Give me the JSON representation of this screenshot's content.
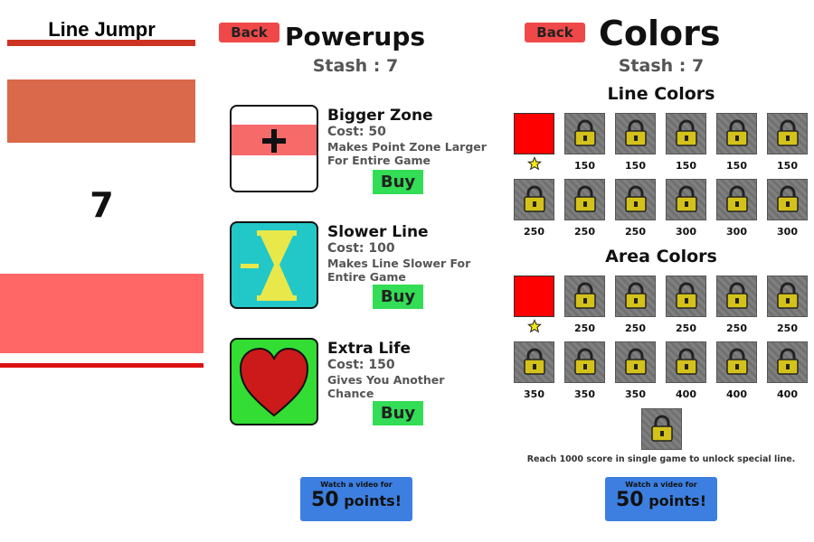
{
  "game": {
    "title": "Line Jumpr",
    "score": "7"
  },
  "powerups": {
    "back_label": "Back",
    "title": "Powerups",
    "stash": "Stash : 7",
    "items": [
      {
        "name": "Bigger Zone",
        "cost": "Cost: 50",
        "desc": "Makes Point Zone Larger For Entire Game",
        "buy": "Buy",
        "icon": "plus-icon"
      },
      {
        "name": "Slower Line",
        "cost": "Cost: 100",
        "desc": "Makes Line Slower For Entire Game",
        "buy": "Buy",
        "icon": "hourglass-icon"
      },
      {
        "name": "Extra Life",
        "cost": "Cost: 150",
        "desc": "Gives You Another Chance",
        "buy": "Buy",
        "icon": "heart-icon"
      }
    ],
    "video": {
      "small": "Watch a video for",
      "number": "50",
      "unit": " points!"
    }
  },
  "colors": {
    "back_label": "Back",
    "title": "Colors",
    "stash": "Stash : 7",
    "line_title": "Line Colors",
    "line_prices": [
      "",
      "150",
      "150",
      "150",
      "150",
      "150",
      "250",
      "250",
      "250",
      "300",
      "300",
      "300"
    ],
    "area_title": "Area Colors",
    "area_prices": [
      "",
      "250",
      "250",
      "250",
      "250",
      "250",
      "350",
      "350",
      "350",
      "400",
      "400",
      "400"
    ],
    "special_note": "Reach 1000 score in single game to unlock special line.",
    "video": {
      "small": "Watch a video for",
      "number": "50",
      "unit": " points!"
    },
    "palette": {
      "selected": "#ff0000",
      "locked": "#777777",
      "lock_body": "#d4c21a"
    }
  }
}
